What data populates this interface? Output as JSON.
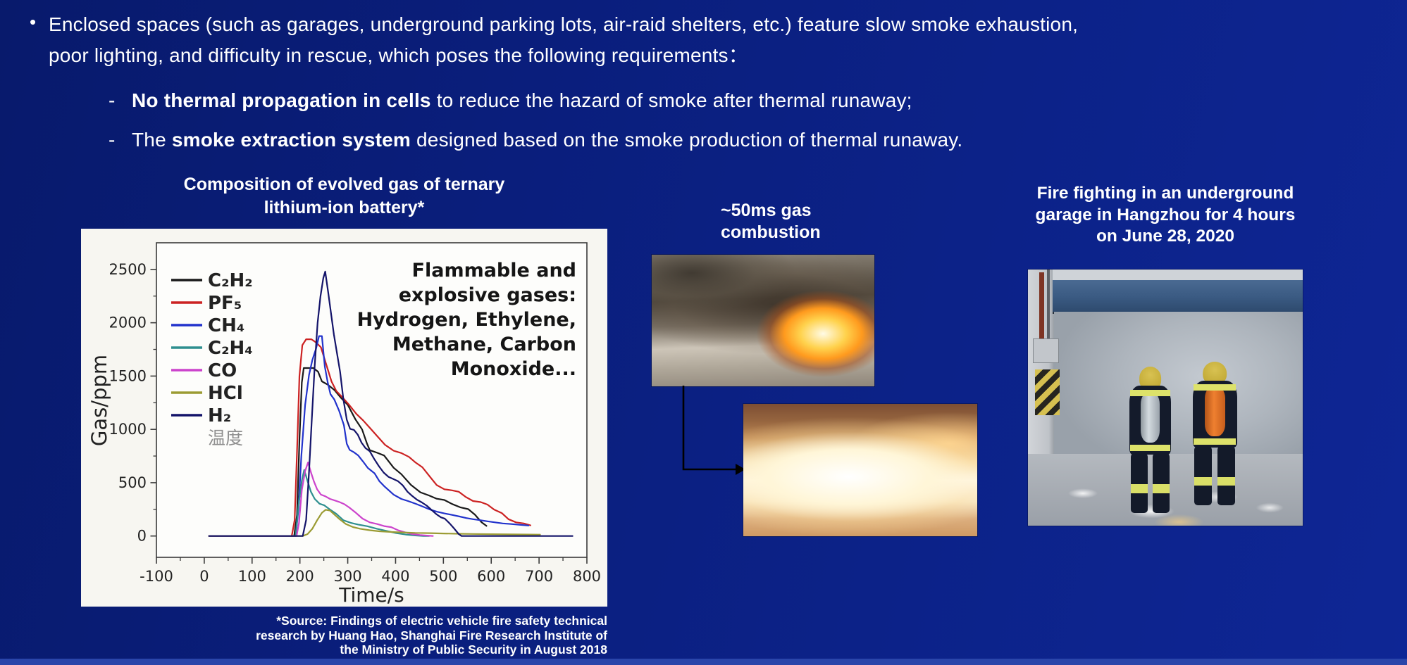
{
  "slide": {
    "background": {
      "base": "#0a1e7c",
      "accent": "#0e2695",
      "bottom_strip": "#2a45aa",
      "text": "#ffffff"
    },
    "bullet": {
      "marker": "•",
      "lines": [
        "Enclosed spaces (such as garages, underground parking lots, air-raid shelters, etc.) feature slow smoke exhaustion,",
        "poor lighting, and difficulty in rescue, which poses the following requirements："
      ]
    },
    "sub_bullets": [
      {
        "marker": "-",
        "pre": "",
        "bold": "No thermal propagation in cells",
        "post": " to reduce the hazard of smoke after thermal runaway;"
      },
      {
        "marker": "-",
        "pre": "The ",
        "bold": "smoke extraction system",
        "post": " designed based on the smoke production of thermal runaway."
      }
    ],
    "chart_title_lines": [
      "Composition of evolved gas of ternary",
      "lithium-ion battery*"
    ],
    "source_lines": [
      "*Source: Findings of electric vehicle fire safety technical",
      "research by Huang Hao, Shanghai Fire Research Institute of",
      "the Ministry of Public Security in August 2018"
    ],
    "middle_caption_lines": [
      "~50ms gas",
      "combustion"
    ],
    "right_caption_lines": [
      "Fire fighting in an underground",
      "garage in Hangzhou for 4 hours",
      "on June 28, 2020"
    ]
  },
  "chart_data": {
    "type": "line",
    "title": "Composition of evolved gas of ternary lithium-ion battery*",
    "xlabel": "Time/s",
    "ylabel": "Gas/ppm",
    "xlim": [
      -100,
      800
    ],
    "ylim": [
      -200,
      2750
    ],
    "x_ticks": [
      -100,
      0,
      100,
      200,
      300,
      400,
      500,
      600,
      700,
      800
    ],
    "y_ticks": [
      0,
      500,
      1000,
      1500,
      2000,
      2500
    ],
    "grid": false,
    "legend_position": "upper-left-inside",
    "legend_extra": {
      "label": "温度",
      "color": "#8f8f8f"
    },
    "annotation_lines": [
      "Flammable and",
      "explosive gases:",
      "Hydrogen, Ethylene,",
      "Methane, Carbon",
      "Monoxide..."
    ],
    "series": [
      {
        "name": "C₂H₂",
        "color": "#1a1a1a",
        "points": [
          [
            10,
            0
          ],
          [
            188,
            0
          ],
          [
            194,
            200
          ],
          [
            199,
            900
          ],
          [
            204,
            1440
          ],
          [
            208,
            1575
          ],
          [
            228,
            1575
          ],
          [
            238,
            1540
          ],
          [
            246,
            1450
          ],
          [
            258,
            1420
          ],
          [
            272,
            1370
          ],
          [
            286,
            1295
          ],
          [
            300,
            1230
          ],
          [
            316,
            1095
          ],
          [
            330,
            1000
          ],
          [
            340,
            870
          ],
          [
            346,
            805
          ],
          [
            362,
            780
          ],
          [
            376,
            755
          ],
          [
            396,
            640
          ],
          [
            412,
            580
          ],
          [
            432,
            480
          ],
          [
            452,
            410
          ],
          [
            470,
            380
          ],
          [
            486,
            350
          ],
          [
            502,
            338
          ],
          [
            518,
            300
          ],
          [
            536,
            268
          ],
          [
            552,
            252
          ],
          [
            566,
            200
          ],
          [
            580,
            128
          ],
          [
            590,
            95
          ]
        ]
      },
      {
        "name": "PF₅",
        "color": "#cc2222",
        "points": [
          [
            10,
            0
          ],
          [
            183,
            0
          ],
          [
            189,
            150
          ],
          [
            194,
            800
          ],
          [
            199,
            1500
          ],
          [
            205,
            1790
          ],
          [
            213,
            1845
          ],
          [
            224,
            1845
          ],
          [
            234,
            1815
          ],
          [
            244,
            1770
          ],
          [
            256,
            1595
          ],
          [
            266,
            1450
          ],
          [
            276,
            1360
          ],
          [
            288,
            1305
          ],
          [
            302,
            1235
          ],
          [
            318,
            1145
          ],
          [
            332,
            1085
          ],
          [
            346,
            1015
          ],
          [
            362,
            935
          ],
          [
            378,
            855
          ],
          [
            396,
            800
          ],
          [
            412,
            778
          ],
          [
            428,
            742
          ],
          [
            442,
            688
          ],
          [
            456,
            645
          ],
          [
            472,
            555
          ],
          [
            486,
            478
          ],
          [
            502,
            438
          ],
          [
            518,
            428
          ],
          [
            532,
            415
          ],
          [
            546,
            368
          ],
          [
            562,
            328
          ],
          [
            578,
            318
          ],
          [
            592,
            295
          ],
          [
            606,
            248
          ],
          [
            622,
            215
          ],
          [
            636,
            158
          ],
          [
            652,
            128
          ],
          [
            668,
            118
          ],
          [
            682,
            100
          ]
        ]
      },
      {
        "name": "CH₄",
        "color": "#2233cc",
        "points": [
          [
            10,
            0
          ],
          [
            191,
            0
          ],
          [
            197,
            250
          ],
          [
            203,
            750
          ],
          [
            211,
            1230
          ],
          [
            219,
            1510
          ],
          [
            226,
            1650
          ],
          [
            234,
            1760
          ],
          [
            240,
            1875
          ],
          [
            246,
            1875
          ],
          [
            252,
            1590
          ],
          [
            258,
            1445
          ],
          [
            264,
            1330
          ],
          [
            272,
            1280
          ],
          [
            282,
            1175
          ],
          [
            292,
            1040
          ],
          [
            298,
            865
          ],
          [
            304,
            808
          ],
          [
            312,
            788
          ],
          [
            322,
            755
          ],
          [
            332,
            698
          ],
          [
            342,
            638
          ],
          [
            356,
            588
          ],
          [
            366,
            515
          ],
          [
            376,
            468
          ],
          [
            386,
            428
          ],
          [
            396,
            388
          ],
          [
            412,
            348
          ],
          [
            426,
            328
          ],
          [
            442,
            302
          ],
          [
            456,
            278
          ],
          [
            472,
            248
          ],
          [
            486,
            228
          ],
          [
            502,
            212
          ],
          [
            518,
            198
          ],
          [
            534,
            183
          ],
          [
            548,
            168
          ],
          [
            562,
            158
          ],
          [
            578,
            148
          ],
          [
            592,
            138
          ],
          [
            608,
            128
          ],
          [
            624,
            118
          ],
          [
            642,
            112
          ],
          [
            662,
            104
          ],
          [
            678,
            98
          ]
        ]
      },
      {
        "name": "C₂H₄",
        "color": "#2e8f8f",
        "points": [
          [
            10,
            0
          ],
          [
            191,
            0
          ],
          [
            197,
            280
          ],
          [
            204,
            520
          ],
          [
            209,
            620
          ],
          [
            216,
            515
          ],
          [
            223,
            415
          ],
          [
            231,
            348
          ],
          [
            241,
            303
          ],
          [
            251,
            288
          ],
          [
            263,
            248
          ],
          [
            276,
            208
          ],
          [
            291,
            148
          ],
          [
            306,
            124
          ],
          [
            321,
            108
          ],
          [
            341,
            92
          ],
          [
            361,
            68
          ],
          [
            381,
            48
          ],
          [
            401,
            28
          ],
          [
            421,
            14
          ],
          [
            441,
            5
          ],
          [
            458,
            0
          ],
          [
            470,
            0
          ]
        ]
      },
      {
        "name": "CO",
        "color": "#cc44cc",
        "points": [
          [
            10,
            0
          ],
          [
            193,
            0
          ],
          [
            198,
            120
          ],
          [
            204,
            430
          ],
          [
            211,
            610
          ],
          [
            217,
            690
          ],
          [
            223,
            598
          ],
          [
            229,
            515
          ],
          [
            236,
            438
          ],
          [
            244,
            388
          ],
          [
            253,
            373
          ],
          [
            263,
            348
          ],
          [
            273,
            333
          ],
          [
            283,
            318
          ],
          [
            293,
            298
          ],
          [
            303,
            268
          ],
          [
            316,
            222
          ],
          [
            331,
            163
          ],
          [
            346,
            128
          ],
          [
            361,
            113
          ],
          [
            376,
            93
          ],
          [
            391,
            83
          ],
          [
            406,
            53
          ],
          [
            421,
            33
          ],
          [
            436,
            18
          ],
          [
            451,
            9
          ],
          [
            466,
            4
          ],
          [
            478,
            0
          ]
        ]
      },
      {
        "name": "HCl",
        "color": "#9b9b33",
        "points": [
          [
            10,
            0
          ],
          [
            206,
            0
          ],
          [
            216,
            18
          ],
          [
            226,
            68
          ],
          [
            236,
            148
          ],
          [
            246,
            218
          ],
          [
            254,
            246
          ],
          [
            263,
            238
          ],
          [
            273,
            198
          ],
          [
            283,
            158
          ],
          [
            296,
            113
          ],
          [
            311,
            84
          ],
          [
            326,
            68
          ],
          [
            346,
            54
          ],
          [
            366,
            44
          ],
          [
            386,
            39
          ],
          [
            411,
            34
          ],
          [
            441,
            29
          ],
          [
            471,
            27
          ],
          [
            501,
            24
          ],
          [
            531,
            21
          ],
          [
            561,
            19
          ],
          [
            601,
            17
          ],
          [
            641,
            15
          ],
          [
            681,
            14
          ],
          [
            702,
            13
          ]
        ]
      },
      {
        "name": "H₂",
        "color": "#14146a",
        "points": [
          [
            10,
            0
          ],
          [
            206,
            0
          ],
          [
            213,
            150
          ],
          [
            219,
            600
          ],
          [
            225,
            1100
          ],
          [
            231,
            1600
          ],
          [
            237,
            2000
          ],
          [
            243,
            2250
          ],
          [
            249,
            2420
          ],
          [
            253,
            2480
          ],
          [
            259,
            2290
          ],
          [
            265,
            2090
          ],
          [
            271,
            1890
          ],
          [
            277,
            1730
          ],
          [
            284,
            1540
          ],
          [
            291,
            1280
          ],
          [
            298,
            1090
          ],
          [
            305,
            1005
          ],
          [
            313,
            995
          ],
          [
            321,
            950
          ],
          [
            329,
            875
          ],
          [
            337,
            825
          ],
          [
            346,
            795
          ],
          [
            355,
            725
          ],
          [
            365,
            655
          ],
          [
            375,
            595
          ],
          [
            385,
            555
          ],
          [
            395,
            535
          ],
          [
            405,
            515
          ],
          [
            415,
            475
          ],
          [
            425,
            415
          ],
          [
            435,
            375
          ],
          [
            445,
            340
          ],
          [
            455,
            315
          ],
          [
            465,
            285
          ],
          [
            475,
            245
          ],
          [
            485,
            205
          ],
          [
            495,
            175
          ],
          [
            503,
            162
          ],
          [
            513,
            118
          ],
          [
            523,
            68
          ],
          [
            532,
            18
          ],
          [
            538,
            0
          ],
          [
            770,
            0
          ]
        ]
      }
    ]
  }
}
